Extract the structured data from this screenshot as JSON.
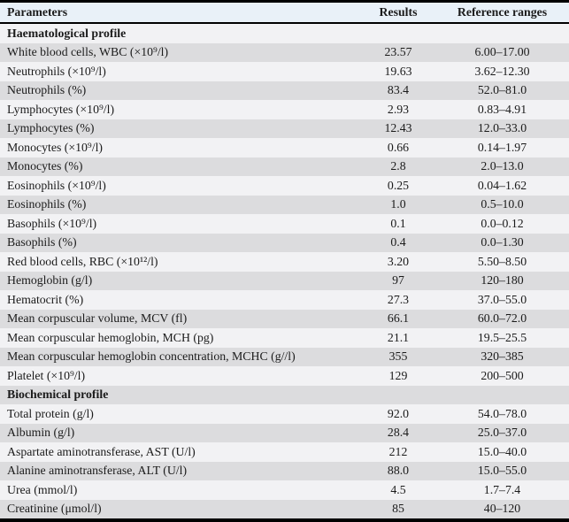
{
  "colors": {
    "header_bg": "#e9f1f8",
    "row_light": "#f2f2f4",
    "row_gray": "#dcdcde",
    "rule": "#000000"
  },
  "table": {
    "columns": [
      "Parameters",
      "Results",
      "Reference ranges"
    ],
    "sections": [
      {
        "title": "Haematological profile",
        "rows": [
          [
            "White blood cells, WBC (×10⁹/l)",
            "23.57",
            "6.00–17.00"
          ],
          [
            "Neutrophils (×10⁹/l)",
            "19.63",
            "3.62–12.30"
          ],
          [
            "Neutrophils (%)",
            "83.4",
            "52.0–81.0"
          ],
          [
            "Lymphocytes (×10⁹/l)",
            "2.93",
            "0.83–4.91"
          ],
          [
            "Lymphocytes (%)",
            "12.43",
            "12.0–33.0"
          ],
          [
            "Monocytes (×10⁹/l)",
            "0.66",
            "0.14–1.97"
          ],
          [
            "Monocytes (%)",
            "2.8",
            "2.0–13.0"
          ],
          [
            "Eosinophils (×10⁹/l)",
            "0.25",
            "0.04–1.62"
          ],
          [
            "Eosinophils (%)",
            "1.0",
            "0.5–10.0"
          ],
          [
            "Basophils (×10⁹/l)",
            "0.1",
            "0.0–0.12"
          ],
          [
            "Basophils (%)",
            "0.4",
            "0.0–1.30"
          ],
          [
            "Red blood cells, RBC (×10¹²/l)",
            "3.20",
            "5.50–8.50"
          ],
          [
            "Hemoglobin (g/l)",
            "97",
            "120–180"
          ],
          [
            "Hematocrit (%)",
            "27.3",
            "37.0–55.0"
          ],
          [
            "Mean corpuscular volume, MCV (fl)",
            "66.1",
            "60.0–72.0"
          ],
          [
            "Mean corpuscular hemoglobin, MCH (pg)",
            "21.1",
            "19.5–25.5"
          ],
          [
            "Mean corpuscular hemoglobin concentration, MCHC (g//l)",
            "355",
            "320–385"
          ],
          [
            "Platelet (×10⁹/l)",
            "129",
            "200–500"
          ]
        ]
      },
      {
        "title": "Biochemical profile",
        "rows": [
          [
            "Total protein (g/l)",
            "92.0",
            "54.0–78.0"
          ],
          [
            "Albumin (g/l)",
            "28.4",
            "25.0–37.0"
          ],
          [
            "Aspartate aminotransferase, AST (U/l)",
            "212",
            "15.0–40.0"
          ],
          [
            "Alanine aminotransferase, ALT (U/l)",
            "88.0",
            "15.0–55.0"
          ],
          [
            "Urea (mmol/l)",
            "4.5",
            "1.7–7.4"
          ],
          [
            "Creatinine (μmol/l)",
            "85",
            "40–120"
          ]
        ]
      }
    ]
  }
}
